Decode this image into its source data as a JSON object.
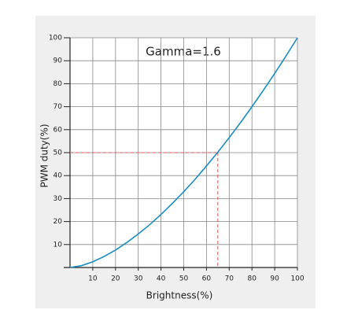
{
  "chart_data": {
    "type": "line",
    "annotation": "Gamma=1.6",
    "xlabel": "Brightness(%)",
    "ylabel": "PWM duty(%)",
    "x": [
      0,
      5,
      10,
      15,
      20,
      25,
      30,
      35,
      40,
      45,
      50,
      55,
      60,
      65,
      70,
      75,
      80,
      85,
      90,
      95,
      100
    ],
    "series": [
      {
        "color": "#1a8cc6",
        "values": [
          0,
          0.8,
          2.5,
          4.8,
          7.6,
          10.9,
          14.6,
          18.6,
          23.1,
          27.9,
          33.0,
          38.4,
          44.2,
          50.2,
          56.5,
          63.1,
          70.0,
          77.1,
          84.5,
          92.1,
          100
        ]
      }
    ],
    "xlim": [
      0,
      100
    ],
    "ylim": [
      0,
      100
    ],
    "xticks": [
      10,
      20,
      30,
      40,
      50,
      60,
      70,
      80,
      90,
      100
    ],
    "yticks": [
      10,
      20,
      30,
      40,
      50,
      60,
      70,
      80,
      90,
      100
    ],
    "grid": true,
    "reference": {
      "x": 65,
      "y": 50,
      "color": "#d9534f"
    }
  }
}
